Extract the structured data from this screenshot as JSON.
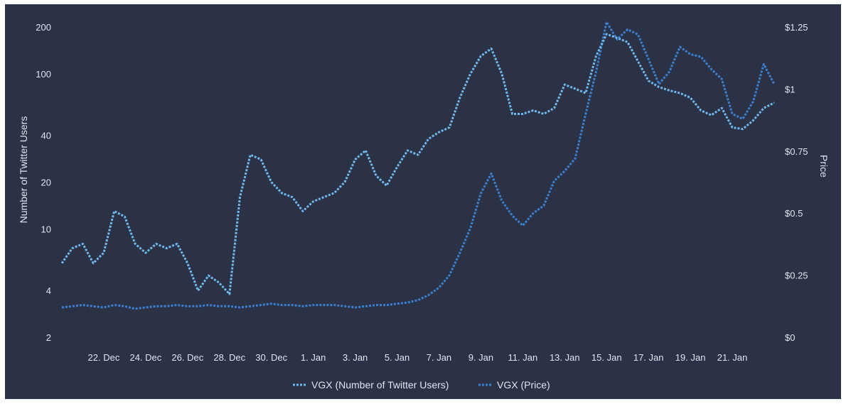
{
  "chart_data": {
    "type": "line",
    "title": "",
    "left_axis": {
      "label": "Number of Twitter Users",
      "scale": "log",
      "range": [
        2,
        200
      ],
      "ticks": [
        2,
        4,
        10,
        20,
        40,
        100,
        200
      ],
      "tick_labels": [
        "2",
        "4",
        "10",
        "20",
        "40",
        "100",
        "200"
      ]
    },
    "right_axis": {
      "label": "Price",
      "scale": "linear",
      "range": [
        0,
        1.25
      ],
      "ticks": [
        0,
        0.25,
        0.5,
        0.75,
        1,
        1.25
      ],
      "tick_labels": [
        "$0",
        "$0.25",
        "$0.5",
        "$0.75",
        "$1",
        "$1.25"
      ]
    },
    "x_axis": {
      "range": [
        "2021-12-20",
        "2022-01-23"
      ],
      "ticks": [
        "2021-12-22",
        "2021-12-24",
        "2021-12-26",
        "2021-12-28",
        "2021-12-30",
        "2022-01-01",
        "2022-01-03",
        "2022-01-05",
        "2022-01-07",
        "2022-01-09",
        "2022-01-11",
        "2022-01-13",
        "2022-01-15",
        "2022-01-17",
        "2022-01-19",
        "2022-01-21"
      ],
      "tick_labels": [
        "22. Dec",
        "24. Dec",
        "26. Dec",
        "28. Dec",
        "30. Dec",
        "1. Jan",
        "3. Jan",
        "5. Jan",
        "7. Jan",
        "9. Jan",
        "11. Jan",
        "13. Jan",
        "15. Jan",
        "17. Jan",
        "19. Jan",
        "21. Jan"
      ]
    },
    "grid": false,
    "legend_position": "bottom-center",
    "series": [
      {
        "name": "VGX (Number of Twitter Users)",
        "axis": "left",
        "color": "#6fb8ee",
        "style": "dotted",
        "x": [
          "2021-12-20",
          "2021-12-20T12:00",
          "2021-12-21",
          "2021-12-21T12:00",
          "2021-12-22",
          "2021-12-22T12:00",
          "2021-12-23",
          "2021-12-23T12:00",
          "2021-12-24",
          "2021-12-24T12:00",
          "2021-12-25",
          "2021-12-25T12:00",
          "2021-12-26",
          "2021-12-26T12:00",
          "2021-12-27",
          "2021-12-27T12:00",
          "2021-12-28",
          "2021-12-28T12:00",
          "2021-12-29",
          "2021-12-29T12:00",
          "2021-12-30",
          "2021-12-30T12:00",
          "2021-12-31",
          "2021-12-31T12:00",
          "2022-01-01",
          "2022-01-01T12:00",
          "2022-01-02",
          "2022-01-02T12:00",
          "2022-01-03",
          "2022-01-03T12:00",
          "2022-01-04",
          "2022-01-04T12:00",
          "2022-01-05",
          "2022-01-05T12:00",
          "2022-01-06",
          "2022-01-06T12:00",
          "2022-01-07",
          "2022-01-07T12:00",
          "2022-01-08",
          "2022-01-08T12:00",
          "2022-01-09",
          "2022-01-09T12:00",
          "2022-01-10",
          "2022-01-10T12:00",
          "2022-01-11",
          "2022-01-11T12:00",
          "2022-01-12",
          "2022-01-12T12:00",
          "2022-01-13",
          "2022-01-13T12:00",
          "2022-01-14",
          "2022-01-14T12:00",
          "2022-01-15",
          "2022-01-15T12:00",
          "2022-01-16",
          "2022-01-16T12:00",
          "2022-01-17",
          "2022-01-17T12:00",
          "2022-01-18",
          "2022-01-18T12:00",
          "2022-01-19",
          "2022-01-19T12:00",
          "2022-01-20",
          "2022-01-20T12:00",
          "2022-01-21",
          "2022-01-21T12:00",
          "2022-01-22",
          "2022-01-22T12:00",
          "2022-01-23"
        ],
        "values": [
          6,
          7.5,
          8,
          6,
          7,
          13,
          12,
          8,
          7,
          8,
          7.5,
          8,
          6,
          4,
          5,
          4.5,
          3.8,
          16,
          30,
          28,
          20,
          17,
          16,
          13,
          15,
          16,
          17,
          20,
          28,
          32,
          22,
          19,
          25,
          32,
          30,
          38,
          42,
          45,
          70,
          100,
          130,
          145,
          100,
          55,
          55,
          58,
          55,
          60,
          85,
          80,
          75,
          130,
          180,
          170,
          160,
          120,
          90,
          82,
          78,
          75,
          70,
          58,
          54,
          60,
          45,
          44,
          50,
          60,
          65
        ]
      },
      {
        "name": "VGX (Price)",
        "axis": "right",
        "color": "#3b7fd0",
        "style": "dotted",
        "x": [
          "2021-12-20",
          "2021-12-20T12:00",
          "2021-12-21",
          "2021-12-21T12:00",
          "2021-12-22",
          "2021-12-22T12:00",
          "2021-12-23",
          "2021-12-23T12:00",
          "2021-12-24",
          "2021-12-24T12:00",
          "2021-12-25",
          "2021-12-25T12:00",
          "2021-12-26",
          "2021-12-26T12:00",
          "2021-12-27",
          "2021-12-27T12:00",
          "2021-12-28",
          "2021-12-28T12:00",
          "2021-12-29",
          "2021-12-29T12:00",
          "2021-12-30",
          "2021-12-30T12:00",
          "2021-12-31",
          "2021-12-31T12:00",
          "2022-01-01",
          "2022-01-01T12:00",
          "2022-01-02",
          "2022-01-02T12:00",
          "2022-01-03",
          "2022-01-03T12:00",
          "2022-01-04",
          "2022-01-04T12:00",
          "2022-01-05",
          "2022-01-05T12:00",
          "2022-01-06",
          "2022-01-06T12:00",
          "2022-01-07",
          "2022-01-07T12:00",
          "2022-01-08",
          "2022-01-08T12:00",
          "2022-01-09",
          "2022-01-09T12:00",
          "2022-01-10",
          "2022-01-10T12:00",
          "2022-01-11",
          "2022-01-11T12:00",
          "2022-01-12",
          "2022-01-12T12:00",
          "2022-01-13",
          "2022-01-13T12:00",
          "2022-01-14",
          "2022-01-14T12:00",
          "2022-01-15",
          "2022-01-15T12:00",
          "2022-01-16",
          "2022-01-16T12:00",
          "2022-01-17",
          "2022-01-17T12:00",
          "2022-01-18",
          "2022-01-18T12:00",
          "2022-01-19",
          "2022-01-19T12:00",
          "2022-01-20",
          "2022-01-20T12:00",
          "2022-01-21",
          "2022-01-21T12:00",
          "2022-01-22",
          "2022-01-22T12:00",
          "2022-01-23"
        ],
        "values": [
          0.12,
          0.125,
          0.13,
          0.125,
          0.12,
          0.13,
          0.125,
          0.115,
          0.12,
          0.125,
          0.125,
          0.13,
          0.125,
          0.125,
          0.13,
          0.125,
          0.125,
          0.12,
          0.125,
          0.13,
          0.135,
          0.13,
          0.13,
          0.125,
          0.13,
          0.13,
          0.13,
          0.125,
          0.12,
          0.125,
          0.13,
          0.13,
          0.135,
          0.14,
          0.15,
          0.17,
          0.2,
          0.25,
          0.34,
          0.44,
          0.58,
          0.66,
          0.55,
          0.49,
          0.45,
          0.5,
          0.53,
          0.63,
          0.67,
          0.72,
          0.9,
          1.07,
          1.27,
          1.2,
          1.24,
          1.22,
          1.12,
          1.02,
          1.07,
          1.17,
          1.14,
          1.13,
          1.08,
          1.04,
          0.9,
          0.88,
          0.95,
          1.1,
          1.02
        ]
      }
    ]
  }
}
